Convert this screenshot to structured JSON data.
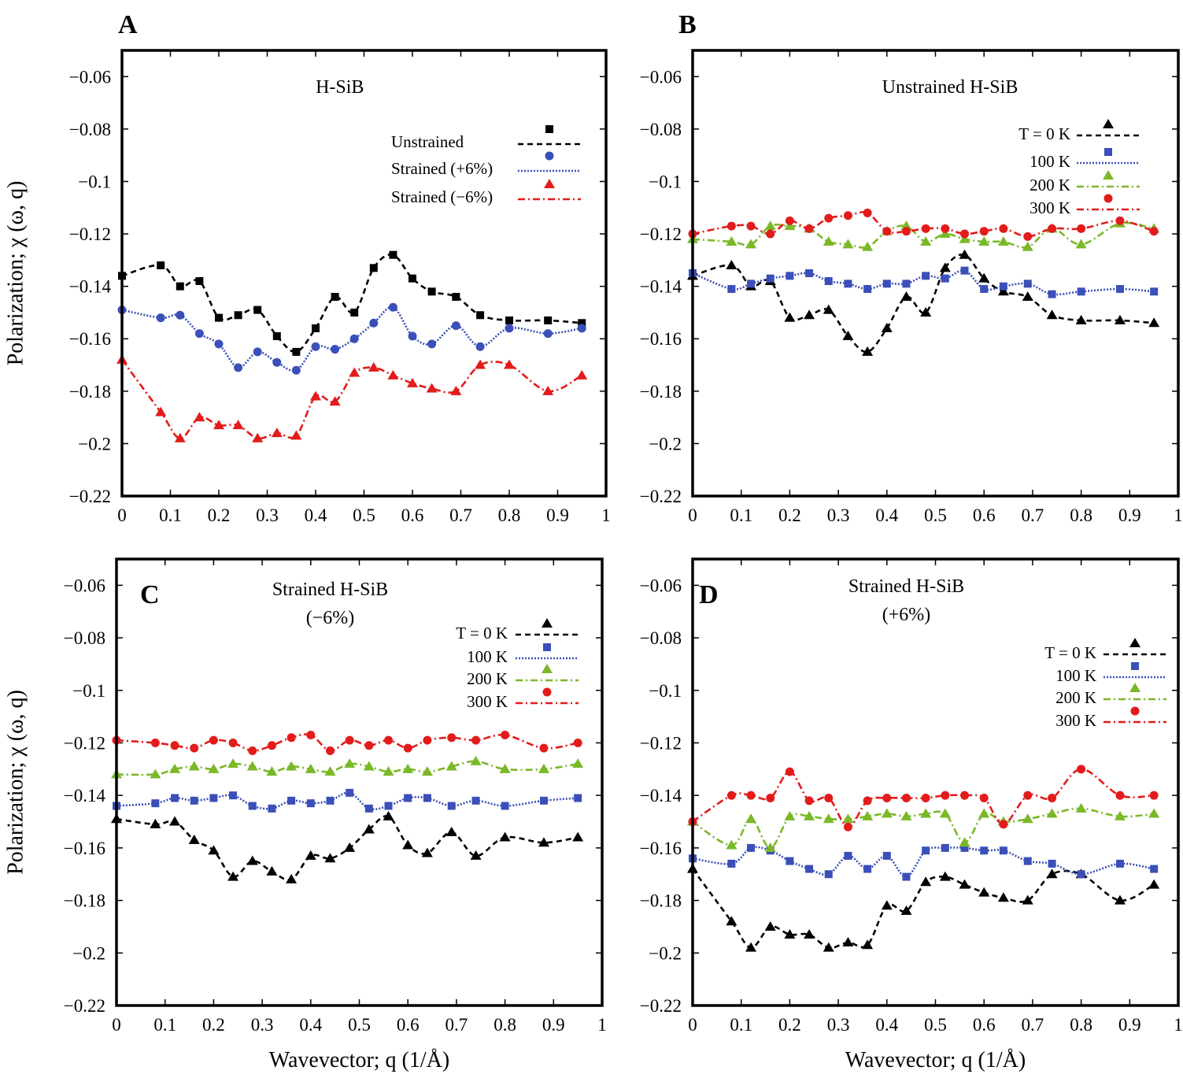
{
  "colors": {
    "black": "#000000",
    "blue": "#3b4fb8",
    "green": "#7ab827",
    "red": "#e31b1b"
  },
  "chart_data": [
    {
      "panel": "A",
      "type": "line",
      "title": "H-SiB",
      "xlabel": "",
      "ylabel": "Polarization; χ (ω, q)",
      "xlim": [
        0,
        1
      ],
      "ylim": [
        -0.22,
        -0.05
      ],
      "xticks": [
        "0",
        "0.1",
        "0.2",
        "0.3",
        "0.4",
        "0.5",
        "0.6",
        "0.7",
        "0.8",
        "0.9",
        "1"
      ],
      "yticks": [
        "−0.06",
        "−0.08",
        "−0.1",
        "−0.12",
        "−0.14",
        "−0.16",
        "−0.18",
        "−0.2",
        "−0.22"
      ],
      "legend_position": "top-right",
      "x": [
        0,
        0.08,
        0.12,
        0.16,
        0.2,
        0.24,
        0.28,
        0.32,
        0.36,
        0.4,
        0.44,
        0.48,
        0.52,
        0.56,
        0.6,
        0.64,
        0.69,
        0.74,
        0.8,
        0.88,
        0.95
      ],
      "series": [
        {
          "name": "Unstrained",
          "color": "black",
          "style": "dashed",
          "marker": "square",
          "values": [
            -0.136,
            -0.132,
            -0.14,
            -0.138,
            -0.152,
            -0.151,
            -0.149,
            -0.159,
            -0.165,
            -0.156,
            -0.144,
            -0.15,
            -0.133,
            -0.128,
            -0.137,
            -0.142,
            -0.144,
            -0.151,
            -0.153,
            -0.153,
            -0.154
          ]
        },
        {
          "name": "Strained  (+6%)",
          "color": "blue",
          "style": "dotted",
          "marker": "circle",
          "values": [
            -0.149,
            -0.152,
            -0.151,
            -0.158,
            -0.162,
            -0.171,
            -0.165,
            -0.169,
            -0.172,
            -0.163,
            -0.164,
            -0.16,
            -0.154,
            -0.148,
            -0.159,
            -0.162,
            -0.155,
            -0.163,
            -0.156,
            -0.158,
            -0.156
          ]
        },
        {
          "name": "Strained  (−6%)",
          "color": "red",
          "style": "dashdot",
          "marker": "triangle",
          "values": [
            -0.168,
            -0.188,
            -0.198,
            -0.19,
            -0.193,
            -0.193,
            -0.198,
            -0.196,
            -0.197,
            -0.182,
            -0.184,
            -0.173,
            -0.171,
            -0.174,
            -0.177,
            -0.179,
            -0.18,
            -0.17,
            -0.17,
            -0.18,
            -0.174
          ]
        }
      ]
    },
    {
      "panel": "B",
      "type": "line",
      "title": "Unstrained H-SiB",
      "xlabel": "",
      "ylabel": "",
      "xlim": [
        0,
        1
      ],
      "ylim": [
        -0.22,
        -0.05
      ],
      "xticks": [
        "0",
        "0.1",
        "0.2",
        "0.3",
        "0.4",
        "0.5",
        "0.6",
        "0.7",
        "0.8",
        "0.9",
        "1"
      ],
      "yticks": [
        "−0.06",
        "−0.08",
        "−0.1",
        "−0.12",
        "−0.14",
        "−0.16",
        "−0.18",
        "−0.2",
        "−0.22"
      ],
      "legend_position": "top-right",
      "x": [
        0,
        0.08,
        0.12,
        0.16,
        0.2,
        0.24,
        0.28,
        0.32,
        0.36,
        0.4,
        0.44,
        0.48,
        0.52,
        0.56,
        0.6,
        0.64,
        0.69,
        0.74,
        0.8,
        0.88,
        0.95
      ],
      "series": [
        {
          "name": "T = 0 K",
          "color": "black",
          "style": "dashed",
          "marker": "triangle",
          "values": [
            -0.136,
            -0.132,
            -0.14,
            -0.138,
            -0.152,
            -0.151,
            -0.149,
            -0.159,
            -0.165,
            -0.156,
            -0.144,
            -0.15,
            -0.133,
            -0.128,
            -0.137,
            -0.142,
            -0.144,
            -0.151,
            -0.153,
            -0.153,
            -0.154
          ]
        },
        {
          "name": "100 K",
          "color": "blue",
          "style": "dotted",
          "marker": "square",
          "values": [
            -0.135,
            -0.141,
            -0.139,
            -0.137,
            -0.136,
            -0.135,
            -0.138,
            -0.139,
            -0.141,
            -0.139,
            -0.139,
            -0.136,
            -0.137,
            -0.134,
            -0.141,
            -0.14,
            -0.139,
            -0.143,
            -0.142,
            -0.141,
            -0.142
          ]
        },
        {
          "name": "200 K",
          "color": "green",
          "style": "dashdot",
          "marker": "triangle",
          "values": [
            -0.122,
            -0.123,
            -0.124,
            -0.117,
            -0.117,
            -0.118,
            -0.123,
            -0.124,
            -0.125,
            -0.119,
            -0.117,
            -0.123,
            -0.12,
            -0.122,
            -0.123,
            -0.123,
            -0.125,
            -0.118,
            -0.124,
            -0.116,
            -0.118
          ]
        },
        {
          "name": "300 K",
          "color": "red",
          "style": "dashdot",
          "marker": "circle",
          "values": [
            -0.12,
            -0.117,
            -0.117,
            -0.12,
            -0.115,
            -0.118,
            -0.114,
            -0.113,
            -0.112,
            -0.119,
            -0.119,
            -0.118,
            -0.118,
            -0.12,
            -0.119,
            -0.118,
            -0.121,
            -0.118,
            -0.118,
            -0.115,
            -0.119
          ]
        }
      ]
    },
    {
      "panel": "C",
      "type": "line",
      "title": "Strained H-SiB",
      "subtitle": "(−6%)",
      "xlabel": "Wavevector; q (1/Å)",
      "ylabel": "Polarization; χ (ω, q)",
      "xlim": [
        0,
        1
      ],
      "ylim": [
        -0.22,
        -0.05
      ],
      "xticks": [
        "0",
        "0.1",
        "0.2",
        "0.3",
        "0.4",
        "0.5",
        "0.6",
        "0.7",
        "0.8",
        "0.9",
        "1"
      ],
      "yticks": [
        "−0.06",
        "−0.08",
        "−0.1",
        "−0.12",
        "−0.14",
        "−0.16",
        "−0.18",
        "−0.2",
        "−0.22"
      ],
      "legend_position": "top-right",
      "x": [
        0,
        0.08,
        0.12,
        0.16,
        0.2,
        0.24,
        0.28,
        0.32,
        0.36,
        0.4,
        0.44,
        0.48,
        0.52,
        0.56,
        0.6,
        0.64,
        0.69,
        0.74,
        0.8,
        0.88,
        0.95
      ],
      "series": [
        {
          "name": "T = 0 K",
          "color": "black",
          "style": "dashed",
          "marker": "triangle",
          "values": [
            -0.149,
            -0.151,
            -0.15,
            -0.157,
            -0.161,
            -0.171,
            -0.165,
            -0.169,
            -0.172,
            -0.163,
            -0.164,
            -0.16,
            -0.153,
            -0.148,
            -0.159,
            -0.162,
            -0.154,
            -0.163,
            -0.156,
            -0.158,
            -0.156
          ]
        },
        {
          "name": "100 K",
          "color": "blue",
          "style": "dotted",
          "marker": "square",
          "values": [
            -0.144,
            -0.143,
            -0.141,
            -0.142,
            -0.141,
            -0.14,
            -0.144,
            -0.145,
            -0.142,
            -0.143,
            -0.142,
            -0.139,
            -0.145,
            -0.144,
            -0.141,
            -0.141,
            -0.144,
            -0.142,
            -0.144,
            -0.142,
            -0.141
          ]
        },
        {
          "name": "200 K",
          "color": "green",
          "style": "dashdot",
          "marker": "triangle",
          "values": [
            -0.132,
            -0.132,
            -0.13,
            -0.129,
            -0.13,
            -0.128,
            -0.129,
            -0.131,
            -0.129,
            -0.13,
            -0.131,
            -0.128,
            -0.129,
            -0.131,
            -0.13,
            -0.131,
            -0.129,
            -0.127,
            -0.13,
            -0.13,
            -0.128
          ]
        },
        {
          "name": "300 K",
          "color": "red",
          "style": "dashdot",
          "marker": "circle",
          "values": [
            -0.119,
            -0.12,
            -0.121,
            -0.122,
            -0.119,
            -0.12,
            -0.123,
            -0.121,
            -0.118,
            -0.117,
            -0.123,
            -0.119,
            -0.121,
            -0.119,
            -0.122,
            -0.119,
            -0.118,
            -0.119,
            -0.117,
            -0.122,
            -0.12
          ]
        }
      ]
    },
    {
      "panel": "D",
      "type": "line",
      "title": "Strained H-SiB",
      "subtitle": "(+6%)",
      "xlabel": "Wavevector; q (1/Å)",
      "ylabel": "",
      "xlim": [
        0,
        1
      ],
      "ylim": [
        -0.22,
        -0.05
      ],
      "xticks": [
        "0",
        "0.1",
        "0.2",
        "0.3",
        "0.4",
        "0.5",
        "0.6",
        "0.7",
        "0.8",
        "0.9",
        "1"
      ],
      "yticks": [
        "−0.06",
        "−0.08",
        "−0.1",
        "−0.12",
        "−0.14",
        "−0.16",
        "−0.18",
        "−0.2",
        "−0.22"
      ],
      "legend_position": "top-right",
      "x": [
        0,
        0.08,
        0.12,
        0.16,
        0.2,
        0.24,
        0.28,
        0.32,
        0.36,
        0.4,
        0.44,
        0.48,
        0.52,
        0.56,
        0.6,
        0.64,
        0.69,
        0.74,
        0.8,
        0.88,
        0.95
      ],
      "series": [
        {
          "name": "T = 0 K",
          "color": "black",
          "style": "dashed",
          "marker": "triangle",
          "values": [
            -0.168,
            -0.188,
            -0.198,
            -0.19,
            -0.193,
            -0.193,
            -0.198,
            -0.196,
            -0.197,
            -0.182,
            -0.184,
            -0.173,
            -0.171,
            -0.174,
            -0.177,
            -0.179,
            -0.18,
            -0.17,
            -0.17,
            -0.18,
            -0.174
          ]
        },
        {
          "name": "100 K",
          "color": "blue",
          "style": "dotted",
          "marker": "square",
          "values": [
            -0.164,
            -0.166,
            -0.16,
            -0.161,
            -0.165,
            -0.168,
            -0.17,
            -0.163,
            -0.168,
            -0.163,
            -0.171,
            -0.161,
            -0.16,
            -0.16,
            -0.161,
            -0.161,
            -0.165,
            -0.166,
            -0.17,
            -0.166,
            -0.168
          ]
        },
        {
          "name": "200 K",
          "color": "green",
          "style": "dashdot",
          "marker": "triangle",
          "values": [
            -0.15,
            -0.159,
            -0.149,
            -0.16,
            -0.148,
            -0.148,
            -0.149,
            -0.149,
            -0.148,
            -0.147,
            -0.148,
            -0.147,
            -0.147,
            -0.158,
            -0.147,
            -0.15,
            -0.149,
            -0.147,
            -0.145,
            -0.148,
            -0.147
          ]
        },
        {
          "name": "300 K",
          "color": "red",
          "style": "dashdot",
          "marker": "circle",
          "values": [
            -0.15,
            -0.14,
            -0.14,
            -0.141,
            -0.131,
            -0.142,
            -0.141,
            -0.152,
            -0.142,
            -0.141,
            -0.141,
            -0.141,
            -0.14,
            -0.14,
            -0.141,
            -0.151,
            -0.14,
            -0.141,
            -0.13,
            -0.14,
            -0.14
          ]
        }
      ]
    }
  ]
}
